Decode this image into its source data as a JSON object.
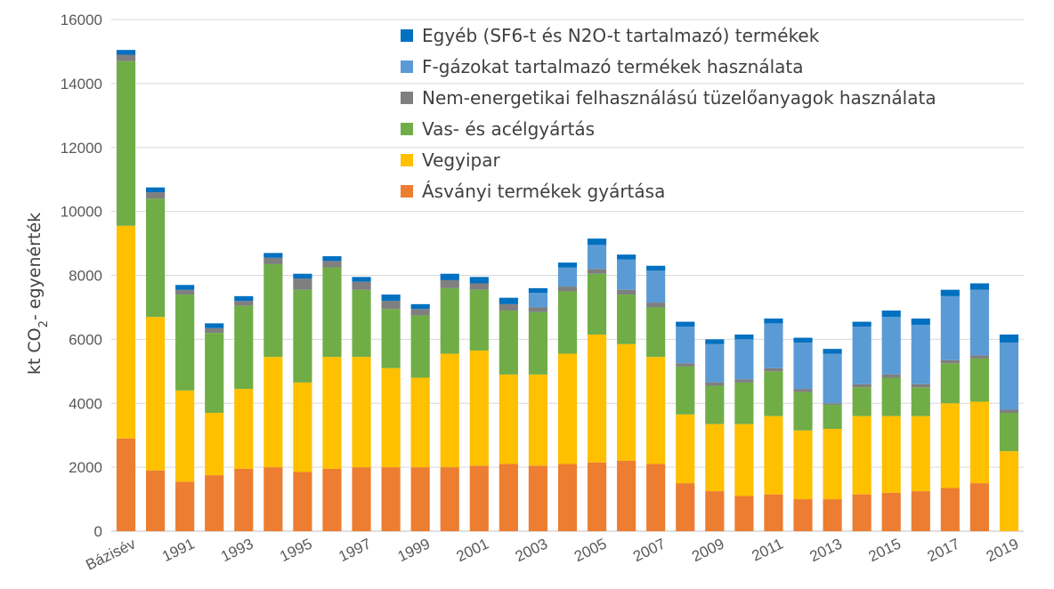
{
  "chart_data": {
    "type": "bar",
    "stacked": true,
    "categories": [
      "Bázisév",
      "1990",
      "1991",
      "1992",
      "1993",
      "1994",
      "1995",
      "1996",
      "1997",
      "1998",
      "1999",
      "2000",
      "2001",
      "2002",
      "2003",
      "2004",
      "2005",
      "2006",
      "2007",
      "2008",
      "2009",
      "2010",
      "2011",
      "2012",
      "2013",
      "2014",
      "2015",
      "2016",
      "2017",
      "2018",
      "2019"
    ],
    "x_tick_labels": [
      "Bázisév",
      "",
      "1991",
      "",
      "1993",
      "",
      "1995",
      "",
      "1997",
      "",
      "1999",
      "",
      "2001",
      "",
      "2003",
      "",
      "2005",
      "",
      "2007",
      "",
      "2009",
      "",
      "2011",
      "",
      "2013",
      "",
      "2015",
      "",
      "2017",
      "",
      "2019"
    ],
    "series": [
      {
        "name": "Ásványi termékek gyártása",
        "color": "#ED7D31",
        "values": [
          2900,
          1900,
          1550,
          1750,
          1950,
          2000,
          1850,
          1950,
          2000,
          2000,
          2000,
          2000,
          2050,
          2100,
          2050,
          2100,
          2150,
          2200,
          2100,
          1500,
          1250,
          1100,
          1150,
          1000,
          1000,
          1150,
          1200,
          1250,
          1350,
          1500,
          0
        ]
      },
      {
        "name": "Vegyipar",
        "color": "#FFC000",
        "values": [
          6650,
          4800,
          2850,
          1950,
          2500,
          3450,
          2800,
          3500,
          3450,
          3100,
          2800,
          3550,
          3600,
          2800,
          2850,
          3450,
          4000,
          3650,
          3350,
          2150,
          2100,
          2250,
          2450,
          2150,
          2200,
          2450,
          2400,
          2350,
          2650,
          2550,
          2500
        ]
      },
      {
        "name": "Vas- és acélgyártás",
        "color": "#70AD47",
        "values": [
          5150,
          3700,
          3000,
          2500,
          2600,
          2900,
          2900,
          2800,
          2100,
          1850,
          1950,
          2050,
          1900,
          2000,
          1950,
          1950,
          1900,
          1550,
          1550,
          1500,
          1200,
          1300,
          1400,
          1200,
          750,
          900,
          1200,
          900,
          1250,
          1350,
          1200
        ]
      },
      {
        "name": "Nem-energetikai felhasználású tüzelőanyagok használata",
        "color": "#7F7F7F",
        "values": [
          200,
          200,
          150,
          150,
          150,
          200,
          350,
          200,
          250,
          250,
          200,
          250,
          200,
          200,
          150,
          150,
          150,
          150,
          150,
          100,
          100,
          100,
          100,
          100,
          50,
          100,
          100,
          100,
          100,
          100,
          100
        ]
      },
      {
        "name": "F-gázokat tartalmazó termékek használata",
        "color": "#5B9BD5",
        "values": [
          0,
          0,
          0,
          0,
          0,
          0,
          0,
          0,
          0,
          0,
          0,
          0,
          0,
          0,
          450,
          600,
          750,
          950,
          1000,
          1150,
          1200,
          1250,
          1400,
          1450,
          1550,
          1800,
          1800,
          1850,
          2000,
          2050,
          2100
        ]
      },
      {
        "name": "Egyéb (SF6-t és N2O-t tartalmazó) termékek",
        "color": "#0070C0",
        "values": [
          150,
          150,
          150,
          150,
          150,
          150,
          150,
          150,
          150,
          200,
          150,
          200,
          200,
          200,
          150,
          150,
          200,
          150,
          150,
          150,
          150,
          150,
          150,
          150,
          150,
          150,
          200,
          200,
          200,
          200,
          250
        ]
      }
    ],
    "ylim": [
      0,
      16000
    ],
    "yticks": [
      0,
      2000,
      4000,
      6000,
      8000,
      10000,
      12000,
      14000,
      16000
    ],
    "ylabel": "kt CO2- egyenérték",
    "ylabel_prefix": "kt CO",
    "ylabel_sub": "2",
    "ylabel_suffix": "- egyenérték",
    "legend_position": "top-right",
    "grid": true
  }
}
